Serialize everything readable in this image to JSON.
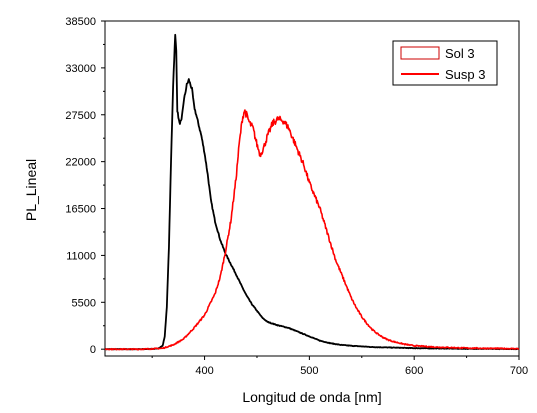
{
  "chart_data": {
    "type": "line",
    "xlabel": "Longitud de onda [nm]",
    "ylabel": "PL_Lineal",
    "xlim": [
      305,
      700
    ],
    "ylim": [
      -800,
      38500
    ],
    "x_ticks": [
      400,
      500,
      600,
      700
    ],
    "y_ticks": [
      0,
      5500,
      11000,
      16500,
      22000,
      27500,
      33000,
      38500
    ],
    "x_tick_labels": [
      "400",
      "500",
      "600",
      "700"
    ],
    "y_tick_labels": [
      "0",
      "5500",
      "11000",
      "16500",
      "22000",
      "27500",
      "33000",
      "38500"
    ],
    "grid": false,
    "legend_position": "top-right",
    "legend_labels": [
      "Sol 3",
      "Susp 3"
    ],
    "series": [
      {
        "name": "Sol 3",
        "color": "#000000",
        "points": [
          [
            305,
            0
          ],
          [
            340,
            0
          ],
          [
            355,
            50
          ],
          [
            360,
            400
          ],
          [
            362,
            1500
          ],
          [
            364,
            5000
          ],
          [
            366,
            12000
          ],
          [
            368,
            22000
          ],
          [
            370,
            31000
          ],
          [
            371,
            34000
          ],
          [
            372,
            36800
          ],
          [
            373,
            35000
          ],
          [
            374,
            28000
          ],
          [
            376,
            26500
          ],
          [
            378,
            26800
          ],
          [
            380,
            29000
          ],
          [
            383,
            31000
          ],
          [
            385,
            31600
          ],
          [
            388,
            30500
          ],
          [
            390,
            28500
          ],
          [
            393,
            27000
          ],
          [
            397,
            25000
          ],
          [
            400,
            23000
          ],
          [
            403,
            20500
          ],
          [
            406,
            17500
          ],
          [
            410,
            15000
          ],
          [
            415,
            12800
          ],
          [
            420,
            11200
          ],
          [
            425,
            10000
          ],
          [
            430,
            8800
          ],
          [
            435,
            7500
          ],
          [
            440,
            6300
          ],
          [
            445,
            5300
          ],
          [
            450,
            4500
          ],
          [
            455,
            3700
          ],
          [
            460,
            3200
          ],
          [
            465,
            3000
          ],
          [
            470,
            2800
          ],
          [
            480,
            2500
          ],
          [
            490,
            2000
          ],
          [
            500,
            1500
          ],
          [
            510,
            1000
          ],
          [
            520,
            700
          ],
          [
            530,
            500
          ],
          [
            540,
            400
          ],
          [
            560,
            250
          ],
          [
            600,
            120
          ],
          [
            650,
            50
          ],
          [
            700,
            20
          ]
        ]
      },
      {
        "name": "Susp 3",
        "color": "#ff0000",
        "points": [
          [
            305,
            0
          ],
          [
            340,
            0
          ],
          [
            360,
            100
          ],
          [
            370,
            500
          ],
          [
            380,
            1200
          ],
          [
            390,
            2500
          ],
          [
            400,
            4000
          ],
          [
            410,
            6500
          ],
          [
            415,
            8500
          ],
          [
            420,
            11500
          ],
          [
            425,
            15000
          ],
          [
            430,
            20000
          ],
          [
            433,
            24000
          ],
          [
            436,
            27000
          ],
          [
            438,
            28000
          ],
          [
            440,
            27500
          ],
          [
            443,
            26500
          ],
          [
            446,
            26000
          ],
          [
            450,
            24000
          ],
          [
            453,
            22800
          ],
          [
            456,
            23500
          ],
          [
            460,
            25000
          ],
          [
            465,
            26500
          ],
          [
            470,
            27000
          ],
          [
            475,
            26800
          ],
          [
            480,
            26000
          ],
          [
            485,
            24500
          ],
          [
            490,
            23000
          ],
          [
            495,
            21500
          ],
          [
            500,
            19500
          ],
          [
            505,
            18000
          ],
          [
            510,
            16500
          ],
          [
            515,
            14500
          ],
          [
            520,
            12500
          ],
          [
            525,
            10500
          ],
          [
            530,
            9000
          ],
          [
            535,
            7500
          ],
          [
            540,
            6000
          ],
          [
            545,
            4800
          ],
          [
            550,
            3800
          ],
          [
            555,
            3000
          ],
          [
            560,
            2300
          ],
          [
            565,
            1800
          ],
          [
            570,
            1400
          ],
          [
            575,
            1100
          ],
          [
            580,
            900
          ],
          [
            590,
            600
          ],
          [
            600,
            400
          ],
          [
            620,
            250
          ],
          [
            650,
            130
          ],
          [
            680,
            80
          ],
          [
            700,
            60
          ]
        ]
      }
    ]
  }
}
